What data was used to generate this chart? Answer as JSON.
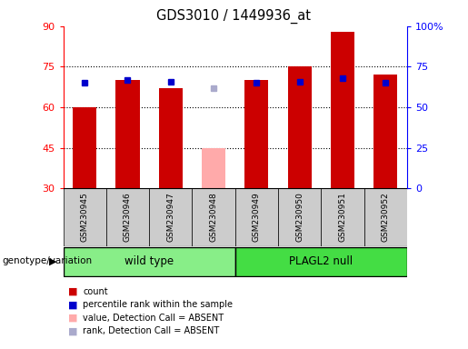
{
  "title": "GDS3010 / 1449936_at",
  "samples": [
    "GSM230945",
    "GSM230946",
    "GSM230947",
    "GSM230948",
    "GSM230949",
    "GSM230950",
    "GSM230951",
    "GSM230952"
  ],
  "count_values": [
    60,
    70,
    67,
    45,
    70,
    75,
    88,
    72
  ],
  "rank_values": [
    65,
    67,
    66,
    62,
    65,
    66,
    68,
    65
  ],
  "absent_flags": [
    false,
    false,
    false,
    true,
    false,
    false,
    false,
    false
  ],
  "ylim_left": [
    30,
    90
  ],
  "ylim_right": [
    0,
    100
  ],
  "yticks_left": [
    30,
    45,
    60,
    75,
    90
  ],
  "yticks_right": [
    0,
    25,
    50,
    75,
    100
  ],
  "ytick_labels_right": [
    "0",
    "25",
    "50",
    "75",
    "100%"
  ],
  "bar_color_present": "#cc0000",
  "bar_color_absent": "#ffaaaa",
  "rank_color_present": "#0000cc",
  "rank_color_absent": "#aaaacc",
  "groups": [
    {
      "label": "wild type",
      "start": 0,
      "end": 3,
      "color": "#88ee88"
    },
    {
      "label": "PLAGL2 null",
      "start": 4,
      "end": 7,
      "color": "#44dd44"
    }
  ],
  "group_label": "genotype/variation",
  "legend_items": [
    {
      "label": "count",
      "color": "#cc0000"
    },
    {
      "label": "percentile rank within the sample",
      "color": "#0000cc"
    },
    {
      "label": "value, Detection Call = ABSENT",
      "color": "#ffaaaa"
    },
    {
      "label": "rank, Detection Call = ABSENT",
      "color": "#aaaacc"
    }
  ],
  "background_color": "#ffffff",
  "bar_width": 0.55,
  "rank_marker_size": 4,
  "grid_dotted_at": [
    45,
    60,
    75
  ]
}
